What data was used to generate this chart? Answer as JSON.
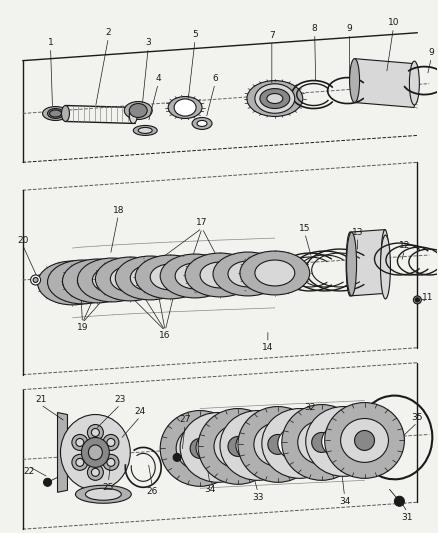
{
  "background_color": "#f2f2ee",
  "line_color": "#1a1a1a",
  "gray_light": "#d8d8d8",
  "gray_mid": "#b0b0b0",
  "gray_dark": "#888888",
  "white": "#ffffff"
}
